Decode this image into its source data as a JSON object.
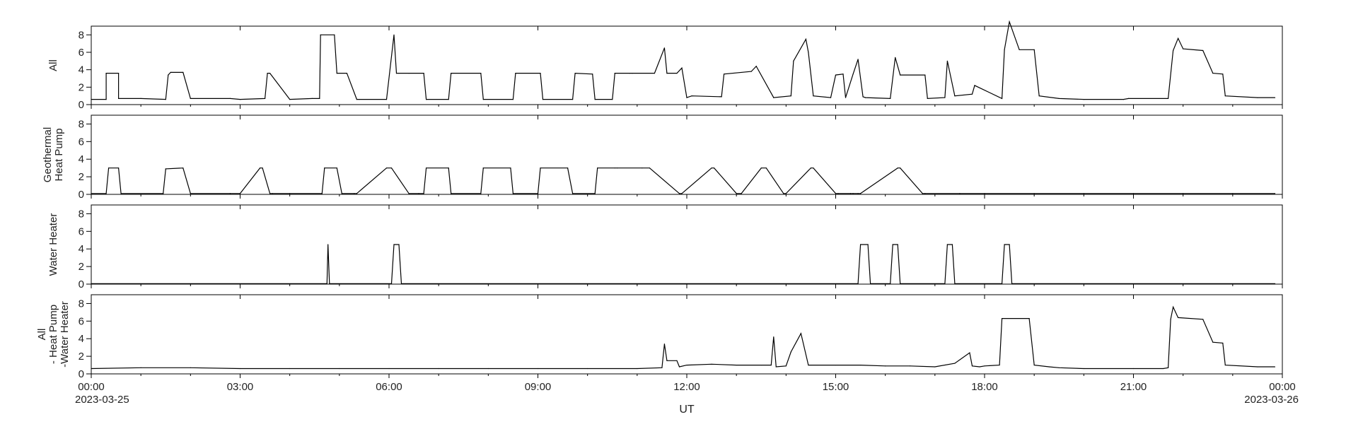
{
  "chart_data": {
    "type": "line",
    "x_unit": "hours",
    "x_start": "2023-03-25 00:00",
    "x_end": "2023-03-26 00:00",
    "xlabel": "UT",
    "x_ticks": [
      "00:00",
      "03:00",
      "06:00",
      "09:00",
      "12:00",
      "15:00",
      "18:00",
      "21:00",
      "00:00"
    ],
    "x_dates": {
      "start": "2023-03-25",
      "end": "2023-03-26"
    },
    "panels": [
      {
        "ylabel": [
          "All"
        ],
        "ylim": [
          0,
          9
        ],
        "y_ticks": [
          0,
          2,
          4,
          6,
          8
        ],
        "series": [
          {
            "x": [
              0.0,
              0.3,
              0.3,
              0.55,
              0.55,
              1.0,
              1.5,
              1.55,
              1.6,
              1.85,
              2.0,
              2.8,
              3.0,
              3.5,
              3.55,
              3.6,
              4.0,
              4.45,
              4.6,
              4.62,
              4.9,
              4.95,
              5.15,
              5.35,
              5.4,
              5.95,
              6.1,
              6.15,
              6.2,
              6.4,
              6.7,
              6.75,
              7.2,
              7.25,
              7.85,
              7.9,
              8.5,
              8.55,
              9.05,
              9.1,
              9.7,
              9.75,
              10.1,
              10.15,
              10.5,
              10.55,
              10.85,
              10.9,
              11.35,
              11.55,
              11.6,
              11.8,
              11.9,
              12.0,
              12.1,
              12.7,
              12.75,
              13.3,
              13.4,
              13.75,
              14.1,
              14.15,
              14.4,
              14.45,
              14.55,
              14.9,
              15.0,
              15.15,
              15.2,
              15.35,
              15.45,
              15.55,
              15.6,
              16.1,
              16.2,
              16.3,
              16.8,
              16.85,
              17.2,
              17.25,
              17.4,
              17.75,
              17.8,
              18.35,
              18.4,
              18.5,
              18.7,
              19.0,
              19.1,
              19.5,
              20.0,
              20.8,
              20.9,
              21.7,
              21.8,
              21.9,
              22.0,
              22.4,
              22.6,
              22.8,
              22.85,
              23.5,
              23.85
            ],
            "y": [
              0.6,
              0.6,
              3.6,
              3.6,
              0.7,
              0.7,
              0.6,
              3.4,
              3.7,
              3.7,
              0.7,
              0.7,
              0.6,
              0.7,
              3.6,
              3.6,
              0.6,
              0.7,
              0.7,
              8.0,
              8.0,
              3.6,
              3.6,
              0.6,
              0.6,
              0.6,
              8.0,
              3.6,
              3.6,
              3.6,
              3.6,
              0.6,
              0.6,
              3.6,
              3.6,
              0.6,
              0.6,
              3.6,
              3.6,
              0.6,
              0.6,
              3.6,
              3.5,
              0.6,
              0.6,
              3.6,
              3.6,
              3.6,
              3.6,
              6.5,
              3.6,
              3.6,
              4.2,
              0.8,
              1.0,
              0.9,
              3.5,
              3.8,
              4.4,
              0.8,
              1.0,
              5.0,
              7.5,
              6.0,
              1.0,
              0.8,
              3.4,
              3.5,
              0.8,
              3.5,
              5.2,
              0.9,
              0.8,
              0.7,
              5.4,
              3.4,
              3.4,
              0.7,
              0.8,
              5.0,
              1.0,
              1.2,
              2.2,
              0.7,
              6.3,
              9.5,
              6.3,
              6.3,
              1.0,
              0.7,
              0.6,
              0.6,
              0.7,
              0.7,
              6.2,
              7.6,
              6.4,
              6.2,
              3.6,
              3.5,
              1.0,
              0.8,
              0.8
            ]
          }
        ]
      },
      {
        "ylabel": [
          "Geothermal",
          "Heat Pump"
        ],
        "ylim": [
          0,
          9
        ],
        "y_ticks": [
          0,
          2,
          4,
          6,
          8
        ],
        "series": [
          {
            "x": [
              0.0,
              0.3,
              0.35,
              0.55,
              0.6,
              1.45,
              1.5,
              1.85,
              2.0,
              2.8,
              3.0,
              3.4,
              3.45,
              3.6,
              3.65,
              4.0,
              4.65,
              4.7,
              4.95,
              5.05,
              5.3,
              5.35,
              5.95,
              6.05,
              6.4,
              6.6,
              6.7,
              6.75,
              7.2,
              7.25,
              7.85,
              7.9,
              8.45,
              8.5,
              9.0,
              9.05,
              9.6,
              9.7,
              10.15,
              10.2,
              10.55,
              10.6,
              11.1,
              11.25,
              11.85,
              11.9,
              12.5,
              12.55,
              13.0,
              13.1,
              13.5,
              13.6,
              13.95,
              14.0,
              14.5,
              14.55,
              15.0,
              15.05,
              15.3,
              15.35,
              15.45,
              15.5,
              16.25,
              16.3,
              16.75,
              16.8,
              17.5,
              18.0,
              19.0,
              20.0,
              21.0,
              22.0,
              23.0,
              23.85
            ],
            "y": [
              0.1,
              0.1,
              3.0,
              3.0,
              0.1,
              0.1,
              2.9,
              3.0,
              0.1,
              0.1,
              0.1,
              3.0,
              3.0,
              0.1,
              0.1,
              0.1,
              0.1,
              3.0,
              3.0,
              0.1,
              0.1,
              0.1,
              3.0,
              3.0,
              0.1,
              0.1,
              0.1,
              3.0,
              3.0,
              0.1,
              0.1,
              3.0,
              3.0,
              0.1,
              0.1,
              3.0,
              3.0,
              0.1,
              0.1,
              3.0,
              3.0,
              3.0,
              3.0,
              3.0,
              0.1,
              0.1,
              3.0,
              3.0,
              0.1,
              0.1,
              3.0,
              3.0,
              0.1,
              0.1,
              3.0,
              3.0,
              0.1,
              0.1,
              0.1,
              0.1,
              0.1,
              0.1,
              3.0,
              3.0,
              0.1,
              0.1,
              0.1,
              0.1,
              0.1,
              0.1,
              0.1,
              0.1,
              0.1,
              0.1
            ]
          }
        ]
      },
      {
        "ylabel": [
          "Water Heater"
        ],
        "ylim": [
          0,
          9
        ],
        "y_ticks": [
          0,
          2,
          4,
          6,
          8
        ],
        "series": [
          {
            "x": [
              0.0,
              4.75,
              4.77,
              4.8,
              6.05,
              6.1,
              6.2,
              6.25,
              15.45,
              15.5,
              15.65,
              15.7,
              16.1,
              16.15,
              16.25,
              16.3,
              17.2,
              17.25,
              17.35,
              17.4,
              18.35,
              18.4,
              18.5,
              18.55,
              23.85
            ],
            "y": [
              0.05,
              0.05,
              4.5,
              0.05,
              0.05,
              4.5,
              4.5,
              0.05,
              0.05,
              4.5,
              4.5,
              0.05,
              0.05,
              4.5,
              4.5,
              0.05,
              0.05,
              4.5,
              4.5,
              0.05,
              0.05,
              4.5,
              4.5,
              0.05,
              0.05
            ]
          }
        ]
      },
      {
        "ylabel": [
          "All",
          "- Heat Pump",
          "-Water Heater"
        ],
        "ylim": [
          0,
          9
        ],
        "y_ticks": [
          0,
          2,
          4,
          6,
          8
        ],
        "series": [
          {
            "x": [
              0.0,
              1.0,
              2.0,
              3.0,
              4.0,
              5.0,
              6.0,
              7.0,
              8.0,
              9.0,
              10.0,
              11.0,
              11.5,
              11.55,
              11.6,
              11.8,
              11.85,
              12.0,
              12.5,
              13.0,
              13.5,
              13.7,
              13.75,
              13.8,
              14.0,
              14.1,
              14.3,
              14.45,
              14.5,
              15.0,
              15.5,
              16.0,
              16.5,
              17.0,
              17.4,
              17.7,
              17.75,
              17.9,
              18.0,
              18.3,
              18.35,
              18.9,
              19.0,
              19.3,
              19.5,
              20.0,
              21.0,
              21.6,
              21.7,
              21.75,
              21.8,
              21.9,
              22.4,
              22.6,
              22.8,
              22.85,
              23.5,
              23.85
            ],
            "y": [
              0.6,
              0.7,
              0.7,
              0.6,
              0.6,
              0.6,
              0.6,
              0.6,
              0.6,
              0.6,
              0.6,
              0.6,
              0.7,
              3.4,
              1.5,
              1.5,
              0.8,
              1.0,
              1.1,
              1.0,
              1.0,
              1.0,
              4.2,
              0.8,
              0.9,
              2.5,
              4.6,
              1.0,
              1.0,
              1.0,
              1.0,
              0.9,
              0.9,
              0.8,
              1.2,
              2.4,
              0.9,
              0.8,
              0.9,
              1.0,
              6.3,
              6.3,
              1.0,
              0.8,
              0.7,
              0.6,
              0.6,
              0.6,
              0.7,
              6.2,
              7.6,
              6.4,
              6.2,
              3.6,
              3.5,
              1.0,
              0.8,
              0.8
            ]
          }
        ]
      }
    ]
  }
}
